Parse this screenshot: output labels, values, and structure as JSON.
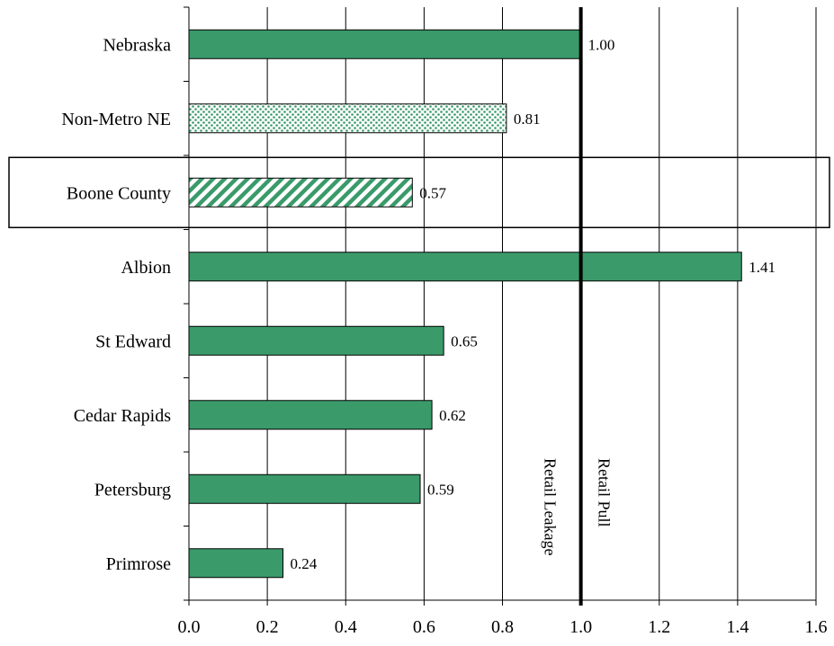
{
  "chart_data": {
    "type": "bar",
    "orientation": "horizontal",
    "title": "",
    "xlabel": "",
    "ylabel": "",
    "categories": [
      "Nebraska",
      "Non-Metro NE",
      "Boone County",
      "Albion",
      "St Edward",
      "Cedar Rapids",
      "Petersburg",
      "Primrose"
    ],
    "values": [
      1.0,
      0.81,
      0.57,
      1.41,
      0.65,
      0.62,
      0.59,
      0.24
    ],
    "value_labels": [
      "1.00",
      "0.81",
      "0.57",
      "1.41",
      "0.65",
      "0.62",
      "0.59",
      "0.24"
    ],
    "bar_patterns": [
      "solid",
      "dotted",
      "striped",
      "solid",
      "solid",
      "solid",
      "solid",
      "solid"
    ],
    "highlighted_category": "Boone County",
    "xlim": [
      0,
      1.6
    ],
    "xticks": [
      0,
      0.2,
      0.4,
      0.6,
      0.8,
      1.0,
      1.2,
      1.4,
      1.6
    ],
    "xtick_labels": [
      "0.0",
      "0.2",
      "0.4",
      "0.6",
      "0.8",
      "1.0",
      "1.2",
      "1.4",
      "1.6"
    ],
    "grid": "vertical",
    "legend": "none",
    "reference_line": {
      "value": 1.0,
      "left_label": "Retail Leakage",
      "right_label": "Retail Pull"
    },
    "colors": {
      "bar": "#3a9a6a",
      "outline": "#000000",
      "grid": "#000000"
    }
  }
}
